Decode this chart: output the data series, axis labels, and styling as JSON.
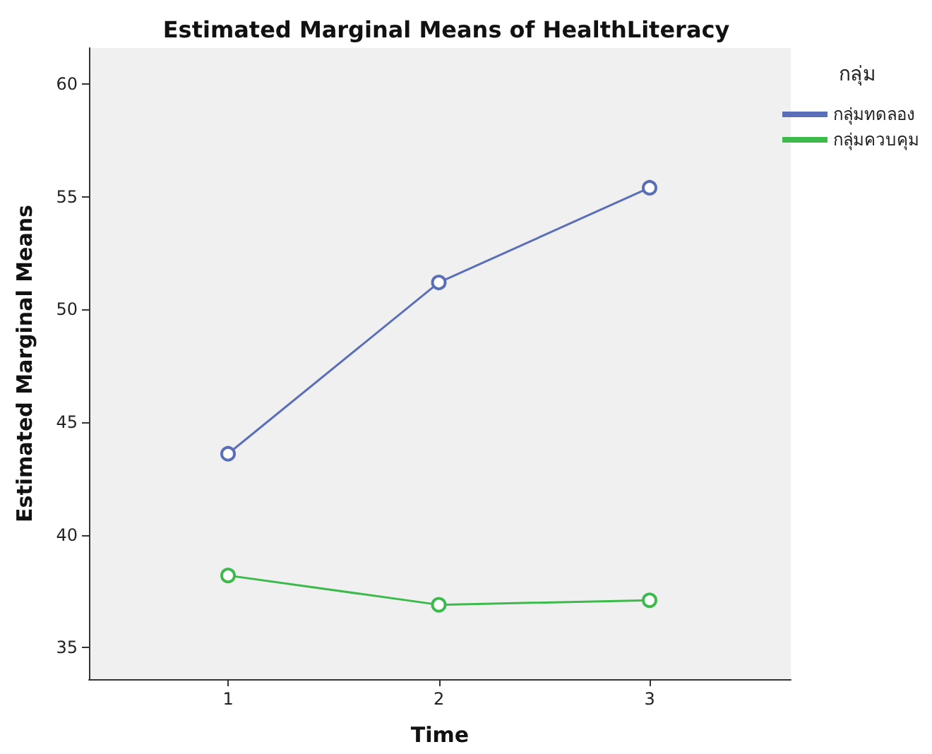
{
  "chart_data": {
    "type": "line",
    "title": "Estimated Marginal Means of HealthLiteracy",
    "xlabel": "Time",
    "ylabel": "Estimated Marginal Means",
    "legend_title": "กลุ่ม",
    "x": [
      1,
      2,
      3
    ],
    "xlim": [
      0.34,
      3.67
    ],
    "xticks": [
      1,
      2,
      3
    ],
    "ylim": [
      33.6,
      61.6
    ],
    "yticks": [
      35,
      40,
      45,
      50,
      55,
      60
    ],
    "series": [
      {
        "name": "กลุ่มทดลอง",
        "color": "#5b6fb8",
        "values": [
          43.6,
          51.2,
          55.4
        ]
      },
      {
        "name": "กลุ่มควบคุม",
        "color": "#3cba4c",
        "values": [
          38.2,
          36.9,
          37.1
        ]
      }
    ],
    "marker": "circle",
    "line_style": "solid",
    "grid": false,
    "legend": "top right"
  }
}
